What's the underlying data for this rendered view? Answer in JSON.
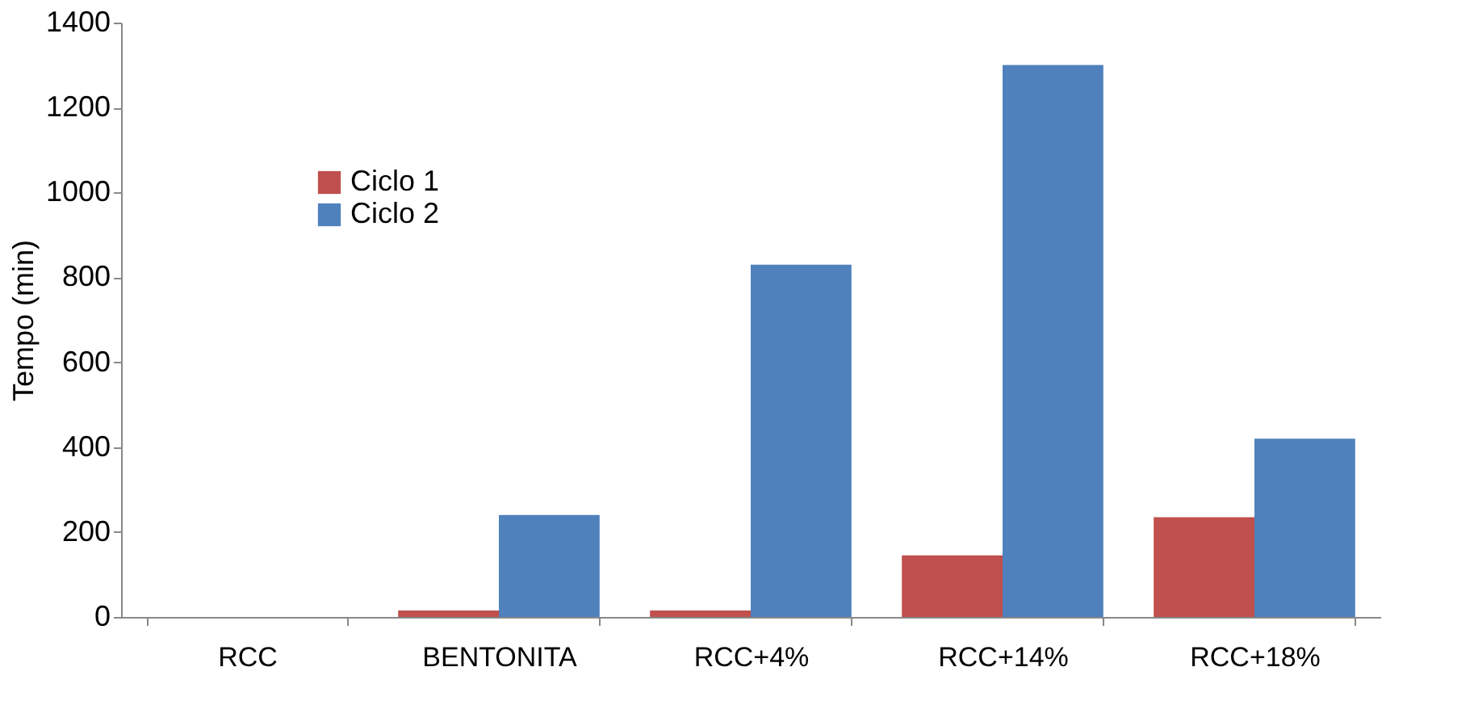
{
  "chart_data": {
    "type": "bar",
    "ylabel": "Tempo (min)",
    "categories": [
      "RCC",
      "BENTONITA",
      "RCC+4%",
      "RCC+14%",
      "RCC+18%"
    ],
    "series": [
      {
        "name": "Ciclo 1",
        "color": "#c0504d",
        "values": [
          0,
          15,
          15,
          145,
          235
        ]
      },
      {
        "name": "Ciclo 2",
        "color": "#4f81bd",
        "values": [
          0,
          240,
          830,
          1300,
          420
        ]
      }
    ],
    "ylim": [
      0,
      1400
    ],
    "yticks": [
      0,
      200,
      400,
      600,
      800,
      1000,
      1200,
      1400
    ],
    "grid": false,
    "legend": "top left"
  }
}
